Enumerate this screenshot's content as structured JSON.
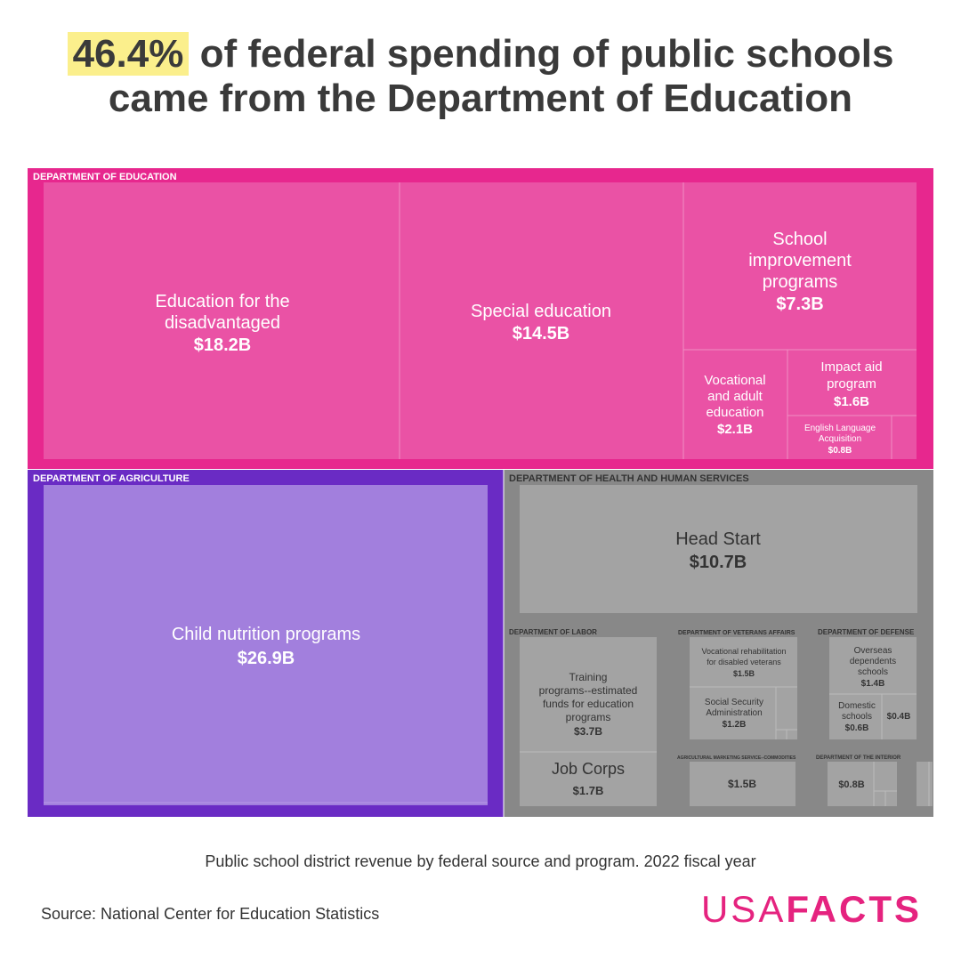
{
  "title": {
    "highlight": "46.4%",
    "rest_line1": " of federal spending of public schools",
    "line2": "came from the Department of Education"
  },
  "subtitle": "Public school district revenue by federal source and program. 2022 fiscal year",
  "source": "Source: National Center for Education Statistics",
  "logo": {
    "part1": "USA",
    "part2": "FACTS"
  },
  "colors": {
    "education": "#e7278e",
    "education_box": "#ea52a5",
    "agriculture": "#6a2bc4",
    "agriculture_box": "#a27fdd",
    "other": "#888888",
    "other_box": "#a3a3a3",
    "accent": "#e5237f",
    "highlight": "#fbef8c"
  },
  "chart_data": {
    "type": "treemap",
    "title": "46.4% of federal spending of public schools came from the Department of Education",
    "subtitle": "Public school district revenue by federal source and program. 2022 fiscal year",
    "unit": "billions USD",
    "groups": [
      {
        "name": "DEPARTMENT OF EDUCATION",
        "color": "#e7278e",
        "items": [
          {
            "label": "Education for the disadvantaged",
            "value": 18.2,
            "value_label": "$18.2B"
          },
          {
            "label": "Special education",
            "value": 14.5,
            "value_label": "$14.5B"
          },
          {
            "label": "School improvement programs",
            "value": 7.3,
            "value_label": "$7.3B"
          },
          {
            "label": "Vocational and adult education",
            "value": 2.1,
            "value_label": "$2.1B"
          },
          {
            "label": "Impact aid program",
            "value": 1.6,
            "value_label": "$1.6B"
          },
          {
            "label": "English Language Acquisition",
            "value": 0.8,
            "value_label": "$0.8B"
          }
        ]
      },
      {
        "name": "DEPARTMENT OF AGRICULTURE",
        "color": "#6a2bc4",
        "items": [
          {
            "label": "Child nutrition programs",
            "value": 26.9,
            "value_label": "$26.9B"
          }
        ]
      },
      {
        "name": "DEPARTMENT OF HEALTH AND HUMAN SERVICES",
        "color": "#888888",
        "items": [
          {
            "label": "Head Start",
            "value": 10.7,
            "value_label": "$10.7B"
          }
        ]
      },
      {
        "name": "DEPARTMENT OF LABOR",
        "color": "#888888",
        "items": [
          {
            "label": "Training programs--estimated funds for education programs",
            "value": 3.7,
            "value_label": "$3.7B"
          },
          {
            "label": "Job Corps",
            "value": 1.7,
            "value_label": "$1.7B"
          }
        ]
      },
      {
        "name": "DEPARTMENT OF VETERANS AFFAIRS",
        "color": "#888888",
        "items": [
          {
            "label": "Vocational rehabilitation for disabled veterans",
            "value": 1.5,
            "value_label": "$1.5B"
          },
          {
            "label": "Social Security Administration",
            "value": 1.2,
            "value_label": "$1.2B"
          }
        ]
      },
      {
        "name": "DEPARTMENT OF DEFENSE",
        "color": "#888888",
        "items": [
          {
            "label": "Overseas dependents schools",
            "value": 1.4,
            "value_label": "$1.4B"
          },
          {
            "label": "Domestic schools",
            "value": 0.6,
            "value_label": "$0.6B"
          },
          {
            "label": "",
            "value": 0.4,
            "value_label": "$0.4B"
          }
        ]
      },
      {
        "name": "AGRICULTURAL MARKETING SERVICE--COMMODITIES",
        "color": "#888888",
        "items": [
          {
            "label": "",
            "value": 1.5,
            "value_label": "$1.5B"
          }
        ]
      },
      {
        "name": "DEPARTMENT OF THE INTERIOR",
        "color": "#888888",
        "items": [
          {
            "label": "",
            "value": 0.8,
            "value_label": "$0.8B"
          }
        ]
      }
    ]
  }
}
